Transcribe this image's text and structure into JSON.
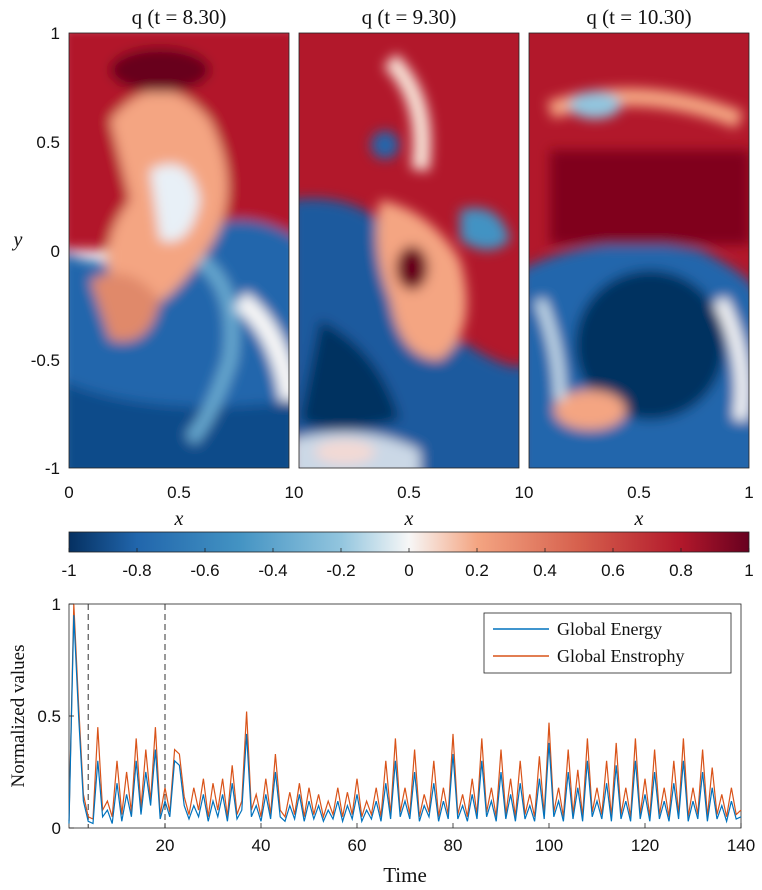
{
  "chart_data": [
    {
      "type": "heatmap",
      "field": "q",
      "panels": [
        {
          "title": "q (t = 8.30)",
          "t": 8.3
        },
        {
          "title": "q (t = 9.30)",
          "t": 9.3
        },
        {
          "title": "q (t = 10.30)",
          "t": 10.3
        }
      ],
      "xlabel": "x",
      "ylabel": "y",
      "xlim": [
        0,
        1
      ],
      "ylim": [
        -1,
        1
      ],
      "x_tick_labels": [
        "0",
        "0.5",
        "10",
        "0.5",
        "10",
        "0.5",
        "1"
      ],
      "y_ticks": [
        "1",
        "0.5",
        "0",
        "-0.5",
        "-1"
      ],
      "colorbar": {
        "range": [
          -1,
          1
        ],
        "ticks": [
          "-1",
          "-0.8",
          "-0.6",
          "-0.4",
          "-0.2",
          "0",
          "0.2",
          "0.4",
          "0.6",
          "0.8",
          "1"
        ],
        "low_color": "#053061",
        "mid_color": "#f7f7f7",
        "high_color": "#67001f",
        "colormap": "RdBu_r"
      }
    },
    {
      "type": "line",
      "xlabel": "Time",
      "ylabel": "Normalized values",
      "xlim": [
        0,
        140
      ],
      "ylim": [
        0,
        1
      ],
      "x_ticks": [
        "20",
        "40",
        "60",
        "80",
        "100",
        "120",
        "140"
      ],
      "y_ticks": [
        "0",
        "0.5",
        "1"
      ],
      "vlines": [
        4,
        20
      ],
      "legend_position": "top-right",
      "series": [
        {
          "name": "Global Energy",
          "color": "#0072bd",
          "x": [
            0,
            1,
            2,
            3,
            4,
            5,
            6,
            7,
            8,
            9,
            10,
            11,
            12,
            13,
            14,
            15,
            16,
            17,
            18,
            19,
            20,
            21,
            22,
            23,
            24,
            25,
            26,
            27,
            28,
            29,
            30,
            31,
            32,
            33,
            34,
            35,
            36,
            37,
            38,
            39,
            40,
            41,
            42,
            43,
            44,
            45,
            46,
            47,
            48,
            49,
            50,
            51,
            52,
            53,
            54,
            55,
            56,
            57,
            58,
            59,
            60,
            61,
            62,
            63,
            64,
            65,
            66,
            67,
            68,
            69,
            70,
            71,
            72,
            73,
            74,
            75,
            76,
            77,
            78,
            79,
            80,
            81,
            82,
            83,
            84,
            85,
            86,
            87,
            88,
            89,
            90,
            91,
            92,
            93,
            94,
            95,
            96,
            97,
            98,
            99,
            100,
            101,
            102,
            103,
            104,
            105,
            106,
            107,
            108,
            109,
            110,
            111,
            112,
            113,
            114,
            115,
            116,
            117,
            118,
            119,
            120,
            121,
            122,
            123,
            124,
            125,
            126,
            127,
            128,
            129,
            130,
            131,
            132,
            133,
            134,
            135,
            136,
            137,
            138,
            139,
            140
          ],
          "y": [
            0.02,
            0.95,
            0.5,
            0.12,
            0.03,
            0.02,
            0.3,
            0.05,
            0.08,
            0.02,
            0.2,
            0.03,
            0.15,
            0.05,
            0.3,
            0.06,
            0.25,
            0.1,
            0.35,
            0.04,
            0.12,
            0.05,
            0.3,
            0.28,
            0.1,
            0.04,
            0.1,
            0.05,
            0.15,
            0.03,
            0.12,
            0.05,
            0.15,
            0.03,
            0.2,
            0.04,
            0.08,
            0.42,
            0.05,
            0.1,
            0.03,
            0.15,
            0.04,
            0.25,
            0.05,
            0.03,
            0.1,
            0.04,
            0.15,
            0.03,
            0.12,
            0.04,
            0.1,
            0.03,
            0.08,
            0.04,
            0.12,
            0.03,
            0.1,
            0.04,
            0.15,
            0.03,
            0.08,
            0.04,
            0.12,
            0.03,
            0.2,
            0.04,
            0.3,
            0.05,
            0.12,
            0.04,
            0.25,
            0.03,
            0.1,
            0.05,
            0.2,
            0.03,
            0.12,
            0.04,
            0.33,
            0.04,
            0.1,
            0.03,
            0.15,
            0.04,
            0.3,
            0.05,
            0.12,
            0.03,
            0.25,
            0.04,
            0.15,
            0.03,
            0.2,
            0.04,
            0.1,
            0.03,
            0.22,
            0.04,
            0.38,
            0.05,
            0.12,
            0.03,
            0.25,
            0.04,
            0.18,
            0.03,
            0.3,
            0.05,
            0.12,
            0.04,
            0.2,
            0.03,
            0.28,
            0.04,
            0.12,
            0.03,
            0.3,
            0.04,
            0.15,
            0.03,
            0.25,
            0.04,
            0.12,
            0.03,
            0.2,
            0.04,
            0.3,
            0.03,
            0.12,
            0.04,
            0.25,
            0.03,
            0.18,
            0.04,
            0.1,
            0.03,
            0.12,
            0.04,
            0.05
          ]
        },
        {
          "name": "Global Enstrophy",
          "color": "#d95319",
          "x": [
            0,
            1,
            2,
            3,
            4,
            5,
            6,
            7,
            8,
            9,
            10,
            11,
            12,
            13,
            14,
            15,
            16,
            17,
            18,
            19,
            20,
            21,
            22,
            23,
            24,
            25,
            26,
            27,
            28,
            29,
            30,
            31,
            32,
            33,
            34,
            35,
            36,
            37,
            38,
            39,
            40,
            41,
            42,
            43,
            44,
            45,
            46,
            47,
            48,
            49,
            50,
            51,
            52,
            53,
            54,
            55,
            56,
            57,
            58,
            59,
            60,
            61,
            62,
            63,
            64,
            65,
            66,
            67,
            68,
            69,
            70,
            71,
            72,
            73,
            74,
            75,
            76,
            77,
            78,
            79,
            80,
            81,
            82,
            83,
            84,
            85,
            86,
            87,
            88,
            89,
            90,
            91,
            92,
            93,
            94,
            95,
            96,
            97,
            98,
            99,
            100,
            101,
            102,
            103,
            104,
            105,
            106,
            107,
            108,
            109,
            110,
            111,
            112,
            113,
            114,
            115,
            116,
            117,
            118,
            119,
            120,
            121,
            122,
            123,
            124,
            125,
            126,
            127,
            128,
            129,
            130,
            131,
            132,
            133,
            134,
            135,
            136,
            137,
            138,
            139,
            140
          ],
          "y": [
            0.03,
            1.0,
            0.55,
            0.15,
            0.05,
            0.04,
            0.45,
            0.08,
            0.12,
            0.05,
            0.3,
            0.06,
            0.25,
            0.07,
            0.4,
            0.09,
            0.35,
            0.12,
            0.45,
            0.06,
            0.18,
            0.07,
            0.35,
            0.33,
            0.14,
            0.06,
            0.18,
            0.08,
            0.22,
            0.05,
            0.2,
            0.08,
            0.22,
            0.05,
            0.28,
            0.06,
            0.12,
            0.52,
            0.08,
            0.15,
            0.05,
            0.22,
            0.06,
            0.33,
            0.08,
            0.05,
            0.16,
            0.06,
            0.2,
            0.05,
            0.18,
            0.06,
            0.15,
            0.05,
            0.12,
            0.06,
            0.18,
            0.05,
            0.16,
            0.06,
            0.22,
            0.05,
            0.12,
            0.06,
            0.18,
            0.05,
            0.3,
            0.06,
            0.4,
            0.07,
            0.18,
            0.06,
            0.35,
            0.05,
            0.15,
            0.07,
            0.3,
            0.05,
            0.18,
            0.06,
            0.42,
            0.06,
            0.15,
            0.05,
            0.22,
            0.06,
            0.4,
            0.07,
            0.18,
            0.05,
            0.35,
            0.06,
            0.22,
            0.05,
            0.3,
            0.06,
            0.15,
            0.05,
            0.32,
            0.06,
            0.47,
            0.07,
            0.18,
            0.05,
            0.35,
            0.06,
            0.26,
            0.05,
            0.4,
            0.07,
            0.18,
            0.06,
            0.3,
            0.05,
            0.38,
            0.06,
            0.18,
            0.05,
            0.4,
            0.06,
            0.22,
            0.05,
            0.35,
            0.06,
            0.18,
            0.05,
            0.3,
            0.06,
            0.4,
            0.05,
            0.18,
            0.06,
            0.35,
            0.05,
            0.27,
            0.06,
            0.15,
            0.05,
            0.18,
            0.06,
            0.08
          ]
        }
      ]
    }
  ]
}
